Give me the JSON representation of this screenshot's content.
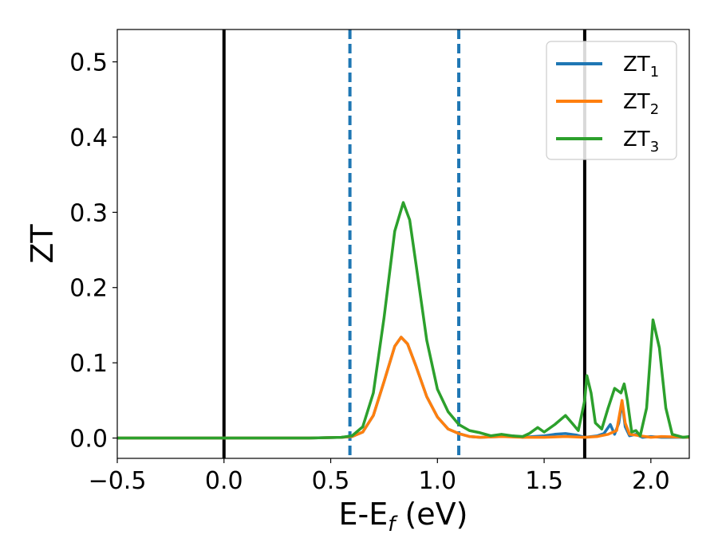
{
  "chart_data": {
    "type": "line",
    "xlabel": {
      "main": "E-E",
      "sub": "f",
      "unit": " (eV)"
    },
    "ylabel": "ZT",
    "xlim": [
      -0.5,
      2.18
    ],
    "ylim": [
      -0.027,
      0.543
    ],
    "xticks": [
      {
        "value": -0.5,
        "label": "−0.5"
      },
      {
        "value": 0.0,
        "label": "0.0"
      },
      {
        "value": 0.5,
        "label": "0.5"
      },
      {
        "value": 1.0,
        "label": "1.0"
      },
      {
        "value": 1.5,
        "label": "1.5"
      },
      {
        "value": 2.0,
        "label": "2.0"
      }
    ],
    "yticks": [
      {
        "value": 0.0,
        "label": "0.0"
      },
      {
        "value": 0.1,
        "label": "0.1"
      },
      {
        "value": 0.2,
        "label": "0.2"
      },
      {
        "value": 0.3,
        "label": "0.3"
      },
      {
        "value": 0.4,
        "label": "0.4"
      },
      {
        "value": 0.5,
        "label": "0.5"
      }
    ],
    "grid": false,
    "legend_position": "top-right",
    "vertical_lines": [
      {
        "x": 0.0,
        "style": "solid",
        "color": "#000000"
      },
      {
        "x": 1.69,
        "style": "solid",
        "color": "#000000"
      },
      {
        "x": 0.59,
        "style": "dashed",
        "color": "#1f77b4"
      },
      {
        "x": 1.1,
        "style": "dashed",
        "color": "#1f77b4"
      }
    ],
    "series": [
      {
        "name": "ZT",
        "name_sub": "1",
        "color": "#1f77b4",
        "points": [
          [
            -0.5,
            0
          ],
          [
            0.4,
            0
          ],
          [
            0.55,
            0.001
          ],
          [
            0.6,
            0.002
          ],
          [
            0.65,
            0.008
          ],
          [
            0.7,
            0.03
          ],
          [
            0.75,
            0.075
          ],
          [
            0.8,
            0.122
          ],
          [
            0.83,
            0.134
          ],
          [
            0.86,
            0.125
          ],
          [
            0.9,
            0.095
          ],
          [
            0.95,
            0.055
          ],
          [
            1.0,
            0.028
          ],
          [
            1.05,
            0.012
          ],
          [
            1.1,
            0.006
          ],
          [
            1.15,
            0.002
          ],
          [
            1.2,
            0.001
          ],
          [
            1.3,
            0.002
          ],
          [
            1.35,
            0.003
          ],
          [
            1.4,
            0.001
          ],
          [
            1.45,
            0.002
          ],
          [
            1.5,
            0.003
          ],
          [
            1.55,
            0.005
          ],
          [
            1.6,
            0.006
          ],
          [
            1.65,
            0.004
          ],
          [
            1.69,
            0.001
          ],
          [
            1.75,
            0.003
          ],
          [
            1.78,
            0.006
          ],
          [
            1.81,
            0.018
          ],
          [
            1.83,
            0.005
          ],
          [
            1.85,
            0.02
          ],
          [
            1.865,
            0.048
          ],
          [
            1.88,
            0.015
          ],
          [
            1.9,
            0.003
          ],
          [
            1.93,
            0.005
          ],
          [
            1.96,
            0.001
          ],
          [
            2.0,
            0.002
          ],
          [
            2.05,
            0.001
          ],
          [
            2.18,
            0.001
          ]
        ]
      },
      {
        "name": "ZT",
        "name_sub": "2",
        "color": "#ff7f0e",
        "points": [
          [
            -0.5,
            0
          ],
          [
            0.4,
            0
          ],
          [
            0.55,
            0.001
          ],
          [
            0.6,
            0.002
          ],
          [
            0.65,
            0.008
          ],
          [
            0.7,
            0.03
          ],
          [
            0.75,
            0.075
          ],
          [
            0.8,
            0.122
          ],
          [
            0.83,
            0.134
          ],
          [
            0.86,
            0.125
          ],
          [
            0.9,
            0.095
          ],
          [
            0.95,
            0.055
          ],
          [
            1.0,
            0.028
          ],
          [
            1.05,
            0.012
          ],
          [
            1.1,
            0.006
          ],
          [
            1.15,
            0.002
          ],
          [
            1.2,
            0.001
          ],
          [
            1.3,
            0.002
          ],
          [
            1.4,
            0.001
          ],
          [
            1.5,
            0.001
          ],
          [
            1.6,
            0.002
          ],
          [
            1.69,
            0.001
          ],
          [
            1.75,
            0.002
          ],
          [
            1.8,
            0.005
          ],
          [
            1.84,
            0.01
          ],
          [
            1.865,
            0.05
          ],
          [
            1.88,
            0.02
          ],
          [
            1.9,
            0.005
          ],
          [
            1.95,
            0.003
          ],
          [
            2.0,
            0.001
          ],
          [
            2.05,
            0.002
          ],
          [
            2.18,
            0.001
          ]
        ]
      },
      {
        "name": "ZT",
        "name_sub": "3",
        "color": "#2ca02c",
        "points": [
          [
            -0.5,
            0
          ],
          [
            0.4,
            0
          ],
          [
            0.55,
            0.001
          ],
          [
            0.6,
            0.003
          ],
          [
            0.65,
            0.015
          ],
          [
            0.7,
            0.06
          ],
          [
            0.75,
            0.16
          ],
          [
            0.8,
            0.275
          ],
          [
            0.84,
            0.313
          ],
          [
            0.87,
            0.29
          ],
          [
            0.9,
            0.23
          ],
          [
            0.95,
            0.13
          ],
          [
            1.0,
            0.065
          ],
          [
            1.05,
            0.035
          ],
          [
            1.1,
            0.018
          ],
          [
            1.15,
            0.01
          ],
          [
            1.2,
            0.007
          ],
          [
            1.25,
            0.003
          ],
          [
            1.3,
            0.005
          ],
          [
            1.35,
            0.003
          ],
          [
            1.4,
            0.002
          ],
          [
            1.43,
            0.006
          ],
          [
            1.47,
            0.014
          ],
          [
            1.5,
            0.008
          ],
          [
            1.55,
            0.018
          ],
          [
            1.6,
            0.03
          ],
          [
            1.63,
            0.02
          ],
          [
            1.66,
            0.01
          ],
          [
            1.69,
            0.05
          ],
          [
            1.7,
            0.083
          ],
          [
            1.72,
            0.06
          ],
          [
            1.74,
            0.02
          ],
          [
            1.77,
            0.012
          ],
          [
            1.8,
            0.04
          ],
          [
            1.83,
            0.066
          ],
          [
            1.86,
            0.06
          ],
          [
            1.875,
            0.072
          ],
          [
            1.89,
            0.05
          ],
          [
            1.91,
            0.008
          ],
          [
            1.93,
            0.01
          ],
          [
            1.95,
            0.003
          ],
          [
            1.98,
            0.04
          ],
          [
            2.01,
            0.157
          ],
          [
            2.04,
            0.12
          ],
          [
            2.07,
            0.04
          ],
          [
            2.1,
            0.005
          ],
          [
            2.15,
            0.001
          ],
          [
            2.18,
            0.002
          ]
        ]
      }
    ]
  }
}
